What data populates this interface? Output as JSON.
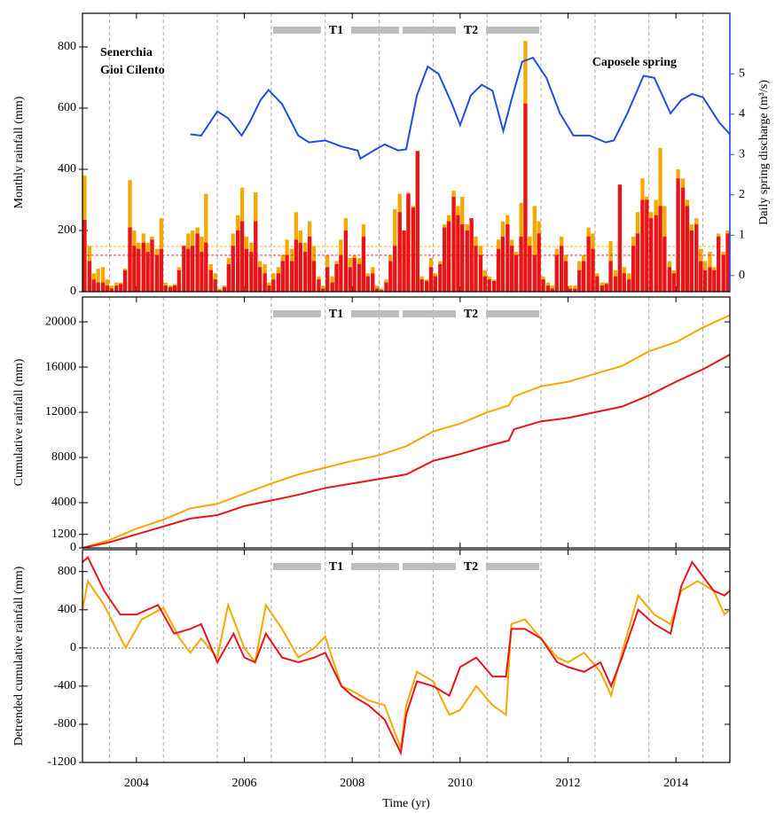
{
  "periods": [
    {
      "label": "T1",
      "start": 2006.5,
      "end": 2008.9
    },
    {
      "label": "T2",
      "start": 2008.9,
      "end": 2011.5
    }
  ],
  "vlines": [
    2003.5,
    2004.5,
    2005.5,
    2006.5,
    2007.5,
    2008.5,
    2009.5,
    2010.5,
    2011.5,
    2012.5,
    2013.5,
    2014.5
  ],
  "chart_data": [
    {
      "type": "bar",
      "ylabel": "Monthly rainfall (mm)",
      "y2label": "Daily spring discharge (m³/s)",
      "xlim": [
        2003,
        2015
      ],
      "xticks": [
        2004,
        2006,
        2008,
        2010,
        2012,
        2014
      ],
      "show_xtick_labels": false,
      "ylim": [
        0,
        910
      ],
      "yticks": [
        0,
        200,
        400,
        600,
        800
      ],
      "y2lim": [
        -0.4,
        6.5
      ],
      "y2ticks": [
        0,
        1,
        2,
        3,
        4,
        5
      ],
      "y2color": "#1f4fe0",
      "x": [
        2003.04,
        2003.13,
        2003.21,
        2003.29,
        2003.38,
        2003.46,
        2003.54,
        2003.63,
        2003.71,
        2003.79,
        2003.88,
        2003.96,
        2004.04,
        2004.13,
        2004.21,
        2004.29,
        2004.38,
        2004.46,
        2004.54,
        2004.63,
        2004.71,
        2004.79,
        2004.88,
        2004.96,
        2005.04,
        2005.13,
        2005.21,
        2005.29,
        2005.38,
        2005.46,
        2005.54,
        2005.63,
        2005.71,
        2005.79,
        2005.88,
        2005.96,
        2006.04,
        2006.13,
        2006.21,
        2006.29,
        2006.38,
        2006.46,
        2006.54,
        2006.63,
        2006.71,
        2006.79,
        2006.88,
        2006.96,
        2007.04,
        2007.13,
        2007.21,
        2007.29,
        2007.38,
        2007.46,
        2007.54,
        2007.63,
        2007.71,
        2007.79,
        2007.88,
        2007.96,
        2008.04,
        2008.13,
        2008.21,
        2008.29,
        2008.38,
        2008.46,
        2008.54,
        2008.63,
        2008.71,
        2008.79,
        2008.88,
        2008.96,
        2009.04,
        2009.13,
        2009.21,
        2009.29,
        2009.38,
        2009.46,
        2009.54,
        2009.63,
        2009.71,
        2009.79,
        2009.88,
        2009.96,
        2010.04,
        2010.13,
        2010.21,
        2010.29,
        2010.38,
        2010.46,
        2010.54,
        2010.63,
        2010.71,
        2010.79,
        2010.88,
        2010.96,
        2011.04,
        2011.13,
        2011.21,
        2011.29,
        2011.38,
        2011.46,
        2011.54,
        2011.63,
        2011.71,
        2011.79,
        2011.88,
        2011.96,
        2012.04,
        2012.13,
        2012.21,
        2012.29,
        2012.38,
        2012.46,
        2012.54,
        2012.63,
        2012.71,
        2012.79,
        2012.88,
        2012.96,
        2013.04,
        2013.13,
        2013.21,
        2013.29,
        2013.38,
        2013.46,
        2013.54,
        2013.63,
        2013.71,
        2013.79,
        2013.88,
        2013.96,
        2014.04,
        2014.13,
        2014.21,
        2014.29,
        2014.38,
        2014.46,
        2014.54,
        2014.63,
        2014.71,
        2014.79,
        2014.88,
        2014.96
      ],
      "series": [
        {
          "name": "Senerchia",
          "color": "#f5a800",
          "type": "bar",
          "mean": 148,
          "values": [
            380,
            150,
            60,
            75,
            80,
            40,
            20,
            30,
            30,
            75,
            365,
            200,
            160,
            190,
            160,
            180,
            140,
            240,
            30,
            20,
            25,
            80,
            150,
            190,
            200,
            210,
            180,
            320,
            90,
            60,
            10,
            20,
            110,
            190,
            250,
            340,
            180,
            160,
            325,
            100,
            90,
            30,
            60,
            80,
            120,
            170,
            140,
            260,
            200,
            160,
            230,
            150,
            50,
            20,
            120,
            50,
            100,
            170,
            240,
            110,
            120,
            110,
            220,
            60,
            80,
            20,
            10,
            40,
            120,
            270,
            320,
            200,
            325,
            280,
            460,
            50,
            40,
            110,
            60,
            100,
            220,
            250,
            330,
            280,
            310,
            220,
            240,
            180,
            150,
            70,
            50,
            40,
            170,
            230,
            250,
            170,
            130,
            290,
            820,
            180,
            280,
            230,
            50,
            30,
            20,
            140,
            180,
            120,
            20,
            20,
            100,
            120,
            210,
            190,
            60,
            30,
            30,
            165,
            70,
            350,
            80,
            60,
            180,
            260,
            370,
            310,
            260,
            300,
            470,
            280,
            100,
            70,
            400,
            370,
            300,
            220,
            240,
            140,
            100,
            130,
            80,
            190,
            130,
            200
          ]
        },
        {
          "name": "Gioi Cilento",
          "color": "#e8141c",
          "type": "bar",
          "mean": 119,
          "values": [
            235,
            100,
            40,
            30,
            30,
            20,
            10,
            20,
            25,
            70,
            210,
            150,
            140,
            160,
            130,
            170,
            120,
            140,
            20,
            15,
            20,
            70,
            150,
            140,
            150,
            190,
            130,
            160,
            70,
            40,
            5,
            15,
            90,
            150,
            200,
            230,
            140,
            130,
            230,
            80,
            60,
            20,
            40,
            60,
            100,
            120,
            100,
            170,
            160,
            130,
            180,
            100,
            40,
            10,
            80,
            30,
            90,
            120,
            200,
            80,
            110,
            90,
            180,
            50,
            60,
            10,
            5,
            30,
            100,
            150,
            260,
            200,
            320,
            275,
            460,
            40,
            35,
            80,
            50,
            90,
            210,
            230,
            310,
            250,
            220,
            200,
            240,
            150,
            120,
            50,
            40,
            35,
            140,
            180,
            220,
            150,
            120,
            180,
            615,
            150,
            120,
            190,
            40,
            20,
            10,
            120,
            150,
            100,
            10,
            10,
            70,
            100,
            180,
            140,
            50,
            20,
            25,
            100,
            50,
            350,
            60,
            40,
            150,
            190,
            300,
            300,
            240,
            250,
            280,
            180,
            80,
            60,
            370,
            340,
            280,
            200,
            220,
            100,
            70,
            80,
            70,
            180,
            120,
            190
          ]
        },
        {
          "name": "Caposele spring",
          "color": "#1f4fe0",
          "type": "line",
          "axis": "y2",
          "x": [
            2005.0,
            2005.2,
            2005.5,
            2005.7,
            2005.95,
            2006.1,
            2006.3,
            2006.45,
            2006.7,
            2007.0,
            2007.2,
            2007.5,
            2007.8,
            2008.1,
            2008.15,
            2008.4,
            2008.6,
            2008.85,
            2009.0,
            2009.2,
            2009.4,
            2009.6,
            2009.85,
            2010.0,
            2010.2,
            2010.4,
            2010.6,
            2010.8,
            2010.95,
            2011.15,
            2011.35,
            2011.6,
            2011.85,
            2012.1,
            2012.4,
            2012.7,
            2012.85,
            2013.1,
            2013.4,
            2013.6,
            2013.9,
            2014.1,
            2014.3,
            2014.5,
            2014.8,
            2015.0
          ],
          "values": [
            3.5,
            3.47,
            4.07,
            3.9,
            3.47,
            3.8,
            4.35,
            4.6,
            4.25,
            3.47,
            3.3,
            3.35,
            3.2,
            3.1,
            2.9,
            3.1,
            3.25,
            3.1,
            3.13,
            4.47,
            5.18,
            5.0,
            4.25,
            3.73,
            4.47,
            4.73,
            4.58,
            3.58,
            4.35,
            5.3,
            5.4,
            4.9,
            4.02,
            3.47,
            3.47,
            3.3,
            3.35,
            4.02,
            4.95,
            4.9,
            4.02,
            4.35,
            4.5,
            4.42,
            3.8,
            3.5
          ]
        }
      ]
    },
    {
      "type": "line",
      "ylabel": "Cumulative rainfall (mm)",
      "xlim": [
        2003,
        2015
      ],
      "xticks": [
        2004,
        2006,
        2008,
        2010,
        2012,
        2014
      ],
      "show_xtick_labels": false,
      "ylim": [
        0,
        22200
      ],
      "yticks": [
        0,
        1200,
        4000,
        8000,
        12000,
        16000,
        20000
      ],
      "series": [
        {
          "name": "Senerchia",
          "color": "#f5a800",
          "x": [
            2003.0,
            2003.5,
            2004.0,
            2004.5,
            2005.0,
            2005.5,
            2006.0,
            2006.5,
            2007.0,
            2007.5,
            2008.0,
            2008.5,
            2009.0,
            2009.5,
            2010.0,
            2010.5,
            2010.9,
            2011.0,
            2011.5,
            2012.0,
            2012.5,
            2013.0,
            2013.5,
            2014.0,
            2014.5,
            2015.0
          ],
          "values": [
            0,
            700,
            1700,
            2500,
            3500,
            3900,
            4800,
            5700,
            6500,
            7100,
            7700,
            8200,
            9000,
            10300,
            11000,
            12000,
            12600,
            13400,
            14300,
            14700,
            15400,
            16100,
            17400,
            18200,
            19500,
            20600
          ]
        },
        {
          "name": "Gioi Cilento",
          "color": "#e8141c",
          "x": [
            2003.0,
            2003.5,
            2004.0,
            2004.5,
            2005.0,
            2005.5,
            2006.0,
            2006.5,
            2007.0,
            2007.5,
            2008.0,
            2008.5,
            2009.0,
            2009.5,
            2010.0,
            2010.5,
            2010.9,
            2011.0,
            2011.5,
            2012.0,
            2012.5,
            2013.0,
            2013.5,
            2014.0,
            2014.5,
            2015.0
          ],
          "values": [
            0,
            500,
            1200,
            1900,
            2600,
            2900,
            3700,
            4200,
            4700,
            5300,
            5700,
            6100,
            6500,
            7700,
            8300,
            9000,
            9500,
            10500,
            11200,
            11500,
            12000,
            12500,
            13500,
            14700,
            15800,
            17100
          ]
        }
      ]
    },
    {
      "type": "line",
      "ylabel": "Detrended cumulative rainfall (mm)",
      "xlabel": "Time (yr)",
      "zero_line": true,
      "xlim": [
        2003,
        2015
      ],
      "xticks": [
        2004,
        2006,
        2008,
        2010,
        2012,
        2014
      ],
      "show_xtick_labels": true,
      "ylim": [
        -1200,
        1030
      ],
      "yticks": [
        -1200,
        -800,
        -400,
        0,
        400,
        800
      ],
      "series": [
        {
          "name": "Senerchia",
          "color": "#f5a800",
          "x": [
            2003.0,
            2003.1,
            2003.4,
            2003.8,
            2004.1,
            2004.5,
            2004.8,
            2005.0,
            2005.2,
            2005.5,
            2005.7,
            2006.0,
            2006.2,
            2006.4,
            2006.7,
            2007.0,
            2007.3,
            2007.5,
            2007.8,
            2008.0,
            2008.3,
            2008.6,
            2008.9,
            2009.0,
            2009.2,
            2009.5,
            2009.8,
            2010.0,
            2010.3,
            2010.6,
            2010.85,
            2010.95,
            2011.2,
            2011.5,
            2011.8,
            2012.0,
            2012.3,
            2012.6,
            2012.8,
            2013.0,
            2013.3,
            2013.6,
            2013.9,
            2014.1,
            2014.4,
            2014.7,
            2014.9,
            2015.0
          ],
          "values": [
            400,
            700,
            450,
            0,
            300,
            420,
            100,
            -50,
            100,
            -100,
            450,
            0,
            -150,
            450,
            200,
            -100,
            0,
            120,
            -400,
            -450,
            -550,
            -600,
            -1050,
            -600,
            -250,
            -350,
            -700,
            -650,
            -400,
            -600,
            -700,
            250,
            300,
            100,
            -100,
            -150,
            -50,
            -250,
            -500,
            -50,
            550,
            350,
            250,
            600,
            700,
            600,
            350,
            400
          ]
        },
        {
          "name": "Gioi Cilento",
          "color": "#e8141c",
          "x": [
            2003.0,
            2003.1,
            2003.4,
            2003.7,
            2004.0,
            2004.4,
            2004.7,
            2005.0,
            2005.2,
            2005.5,
            2005.8,
            2006.0,
            2006.2,
            2006.4,
            2006.7,
            2007.0,
            2007.3,
            2007.5,
            2007.8,
            2008.0,
            2008.3,
            2008.6,
            2008.9,
            2009.0,
            2009.2,
            2009.5,
            2009.8,
            2010.0,
            2010.3,
            2010.6,
            2010.85,
            2010.95,
            2011.2,
            2011.5,
            2011.8,
            2012.0,
            2012.3,
            2012.6,
            2012.8,
            2013.0,
            2013.3,
            2013.6,
            2013.9,
            2014.1,
            2014.3,
            2014.7,
            2014.9,
            2015.0
          ],
          "values": [
            900,
            950,
            600,
            350,
            350,
            450,
            150,
            200,
            250,
            -150,
            150,
            -100,
            -150,
            150,
            -100,
            -150,
            -100,
            -50,
            -400,
            -500,
            -600,
            -750,
            -1100,
            -700,
            -350,
            -400,
            -500,
            -200,
            -100,
            -300,
            -300,
            200,
            200,
            100,
            -150,
            -200,
            -250,
            -150,
            -400,
            -100,
            400,
            250,
            150,
            650,
            900,
            600,
            550,
            600
          ]
        }
      ]
    }
  ]
}
